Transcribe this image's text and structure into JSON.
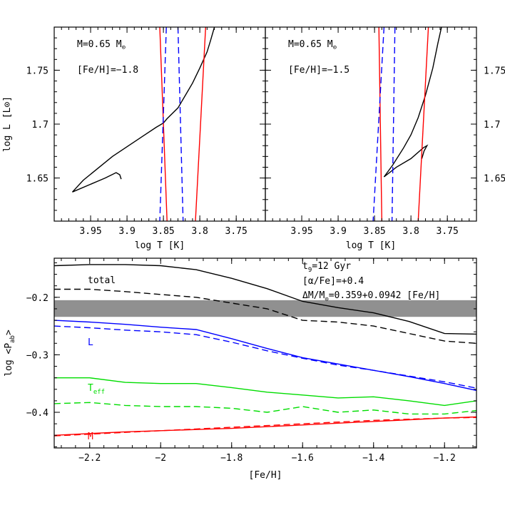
{
  "chart_data": [
    {
      "type": "line",
      "panel": "top-left",
      "xlabel": "log T [K]",
      "ylabel": "log L [L⊙]",
      "xlim": [
        4.0,
        3.71
      ],
      "ylim": [
        1.61,
        1.79
      ],
      "xticks": [
        "3.95",
        "3.9",
        "3.85",
        "3.8",
        "3.75"
      ],
      "yticks": [
        "1.65",
        "1.7",
        "1.75"
      ],
      "annotations": {
        "mass": "M=0.65 M",
        "mass_sub": "⊙",
        "feh": "[Fe/H]=−1.8"
      },
      "series": [
        {
          "color": "#000000",
          "dash": "solid",
          "x": [
            3.908,
            3.91,
            3.915,
            3.93,
            3.975,
            3.96,
            3.92,
            3.88,
            3.86,
            3.85,
            3.845,
            3.83,
            3.81,
            3.8,
            3.79,
            3.785,
            3.78
          ],
          "y": [
            1.649,
            1.653,
            1.655,
            1.65,
            1.637,
            1.648,
            1.67,
            1.688,
            1.697,
            1.701,
            1.705,
            1.715,
            1.738,
            1.752,
            1.767,
            1.778,
            1.79
          ]
        },
        {
          "color": "#ff0000",
          "dash": "solid",
          "x": [
            3.855,
            3.845
          ],
          "y": [
            1.79,
            1.61
          ]
        },
        {
          "color": "#ff0000",
          "dash": "solid",
          "x": [
            3.792,
            3.806
          ],
          "y": [
            1.79,
            1.61
          ]
        },
        {
          "color": "#0000ff",
          "dash": "dashed",
          "x": [
            3.846,
            3.855
          ],
          "y": [
            1.79,
            1.61
          ]
        },
        {
          "color": "#0000ff",
          "dash": "dashed",
          "x": [
            3.83,
            3.823
          ],
          "y": [
            1.79,
            1.61
          ]
        }
      ]
    },
    {
      "type": "line",
      "panel": "top-right",
      "xlabel": "log T [K]",
      "xlim": [
        4.0,
        3.71
      ],
      "ylim": [
        1.61,
        1.79
      ],
      "xticks": [
        "3.95",
        "3.9",
        "3.85",
        "3.8",
        "3.75"
      ],
      "yticks": [
        "1.65",
        "1.7",
        "1.75"
      ],
      "annotations": {
        "mass": "M=0.65 M",
        "mass_sub": "⊙",
        "feh": "[Fe/H]=−1.5"
      },
      "series": [
        {
          "color": "#000000",
          "dash": "solid",
          "x": [
            3.785,
            3.782,
            3.778,
            3.783,
            3.8,
            3.82,
            3.837,
            3.825,
            3.81,
            3.8,
            3.79,
            3.78,
            3.77,
            3.763,
            3.758
          ],
          "y": [
            1.668,
            1.675,
            1.68,
            1.678,
            1.668,
            1.66,
            1.651,
            1.662,
            1.678,
            1.69,
            1.706,
            1.727,
            1.752,
            1.775,
            1.79
          ]
        },
        {
          "color": "#ff0000",
          "dash": "solid",
          "x": [
            3.844,
            3.84
          ],
          "y": [
            1.79,
            1.61
          ]
        },
        {
          "color": "#ff0000",
          "dash": "solid",
          "x": [
            3.776,
            3.79
          ],
          "y": [
            1.79,
            1.61
          ]
        },
        {
          "color": "#0000ff",
          "dash": "dashed",
          "x": [
            3.837,
            3.852
          ],
          "y": [
            1.79,
            1.61
          ]
        },
        {
          "color": "#0000ff",
          "dash": "dashed",
          "x": [
            3.822,
            3.826
          ],
          "y": [
            1.79,
            1.61
          ]
        }
      ]
    },
    {
      "type": "line",
      "panel": "bottom",
      "xlabel": "[Fe/H]",
      "ylabel": "log <P",
      "ylabel_sub": "ab",
      "ylabel_end": ">",
      "xlim": [
        -2.3,
        -1.11
      ],
      "ylim": [
        -0.462,
        -0.132
      ],
      "xticks": [
        "−2.2",
        "−2",
        "−1.8",
        "−1.6",
        "−1.4",
        "−1.2"
      ],
      "yticks": [
        "−0.2",
        "−0.3",
        "−0.4"
      ],
      "band": {
        "y0": -0.205,
        "y1": -0.234,
        "color": "#909090"
      },
      "annotations": {
        "line1": "t",
        "line1_sub": "9",
        "line1_end": "=12 Gyr",
        "line2": "[α/Fe]=+0.4",
        "line3": "ΔM/M",
        "line3_sub": "⊙",
        "line3_end": "=0.359+0.0942 [Fe/H]"
      },
      "labels": {
        "total": "total",
        "L": "L",
        "teff": "T",
        "teff_sub": "eff",
        "M": "M"
      },
      "series": [
        {
          "name": "total",
          "color": "#000000",
          "dash": "solid",
          "x": [
            -2.3,
            -2.2,
            -2.1,
            -2.0,
            -1.9,
            -1.8,
            -1.7,
            -1.6,
            -1.5,
            -1.4,
            -1.3,
            -1.2,
            -1.11
          ],
          "y": [
            -0.145,
            -0.143,
            -0.143,
            -0.145,
            -0.152,
            -0.167,
            -0.185,
            -0.207,
            -0.218,
            -0.227,
            -0.242,
            -0.263,
            -0.264
          ]
        },
        {
          "color": "#000000",
          "dash": "dashed",
          "x": [
            -2.3,
            -2.2,
            -2.1,
            -2.0,
            -1.9,
            -1.8,
            -1.7,
            -1.6,
            -1.5,
            -1.4,
            -1.3,
            -1.2,
            -1.11
          ],
          "y": [
            -0.186,
            -0.186,
            -0.19,
            -0.195,
            -0.2,
            -0.21,
            -0.22,
            -0.24,
            -0.243,
            -0.25,
            -0.263,
            -0.276,
            -0.28
          ]
        },
        {
          "name": "L",
          "color": "#0000ff",
          "dash": "solid",
          "x": [
            -2.3,
            -2.2,
            -2.1,
            -2.0,
            -1.9,
            -1.8,
            -1.7,
            -1.6,
            -1.5,
            -1.4,
            -1.3,
            -1.2,
            -1.11
          ],
          "y": [
            -0.24,
            -0.243,
            -0.247,
            -0.252,
            -0.256,
            -0.272,
            -0.289,
            -0.305,
            -0.316,
            -0.327,
            -0.338,
            -0.35,
            -0.362
          ]
        },
        {
          "color": "#0000ff",
          "dash": "dashed",
          "x": [
            -2.3,
            -2.2,
            -2.1,
            -2.0,
            -1.9,
            -1.8,
            -1.7,
            -1.6,
            -1.5,
            -1.4,
            -1.3,
            -1.2,
            -1.11
          ],
          "y": [
            -0.25,
            -0.253,
            -0.257,
            -0.26,
            -0.265,
            -0.278,
            -0.293,
            -0.306,
            -0.318,
            -0.327,
            -0.337,
            -0.347,
            -0.358
          ]
        },
        {
          "name": "T_eff",
          "color": "#00dd00",
          "dash": "solid",
          "x": [
            -2.3,
            -2.2,
            -2.1,
            -2.0,
            -1.9,
            -1.8,
            -1.7,
            -1.6,
            -1.5,
            -1.4,
            -1.3,
            -1.2,
            -1.11
          ],
          "y": [
            -0.34,
            -0.34,
            -0.348,
            -0.35,
            -0.35,
            -0.357,
            -0.365,
            -0.37,
            -0.375,
            -0.373,
            -0.38,
            -0.388,
            -0.38
          ]
        },
        {
          "color": "#00dd00",
          "dash": "dashed",
          "x": [
            -2.3,
            -2.2,
            -2.1,
            -2.0,
            -1.9,
            -1.8,
            -1.7,
            -1.6,
            -1.5,
            -1.4,
            -1.3,
            -1.2,
            -1.11
          ],
          "y": [
            -0.385,
            -0.383,
            -0.388,
            -0.39,
            -0.39,
            -0.393,
            -0.4,
            -0.39,
            -0.4,
            -0.396,
            -0.403,
            -0.403,
            -0.397
          ]
        },
        {
          "name": "M",
          "color": "#ff0000",
          "dash": "solid",
          "x": [
            -2.3,
            -2.2,
            -2.1,
            -2.0,
            -1.9,
            -1.8,
            -1.7,
            -1.6,
            -1.5,
            -1.4,
            -1.3,
            -1.2,
            -1.11
          ],
          "y": [
            -0.44,
            -0.437,
            -0.434,
            -0.432,
            -0.43,
            -0.428,
            -0.425,
            -0.422,
            -0.419,
            -0.416,
            -0.413,
            -0.41,
            -0.408
          ]
        },
        {
          "color": "#ff0000",
          "dash": "dashed",
          "x": [
            -2.3,
            -2.2,
            -2.1,
            -2.0,
            -1.9,
            -1.8,
            -1.7,
            -1.6,
            -1.5,
            -1.4,
            -1.3,
            -1.2,
            -1.11
          ],
          "y": [
            -0.441,
            -0.438,
            -0.435,
            -0.432,
            -0.429,
            -0.426,
            -0.423,
            -0.42,
            -0.417,
            -0.414,
            -0.412,
            -0.41,
            -0.409
          ]
        }
      ]
    }
  ]
}
